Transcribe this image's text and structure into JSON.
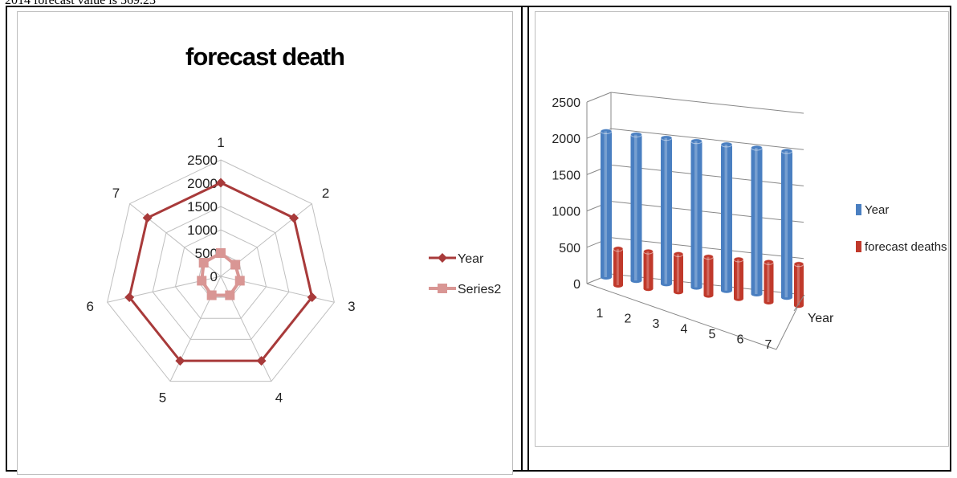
{
  "header_note": "2014 forecast value is 569.23",
  "colors": {
    "year_line": "#a83a3a",
    "series2_line": "#d99694",
    "year_bar": "#4a7fc1",
    "forecast_bar": "#c0392b",
    "grid": "#bfbfbf"
  },
  "chart_data": [
    {
      "type": "radar",
      "title": "forecast death",
      "categories": [
        "1",
        "2",
        "3",
        "4",
        "5",
        "6",
        "7"
      ],
      "radial_ticks": [
        "0",
        "500",
        "1000",
        "1500",
        "2000",
        "2500"
      ],
      "rlim": [
        0,
        2500
      ],
      "legend_position": "right",
      "series": [
        {
          "name": "Year",
          "values": [
            2008,
            2009,
            2010,
            2011,
            2012,
            2013,
            2014
          ],
          "marker": "diamond"
        },
        {
          "name": "Series2",
          "values": [
            500,
            400,
            420,
            450,
            450,
            420,
            470
          ],
          "marker": "square"
        }
      ]
    },
    {
      "type": "bar",
      "subtype": "3d-cylinder",
      "categories": [
        "1",
        "2",
        "3",
        "4",
        "5",
        "6",
        "7"
      ],
      "y_ticks": [
        "0",
        "500",
        "1000",
        "1500",
        "2000",
        "2500"
      ],
      "ylim": [
        0,
        2500
      ],
      "depth_label": "Year",
      "legend_position": "right",
      "grid": true,
      "series": [
        {
          "name": "Year",
          "values": [
            2008,
            2009,
            2010,
            2011,
            2012,
            2013,
            2014
          ]
        },
        {
          "name": "forecast deaths",
          "values": [
            500,
            510,
            520,
            530,
            540,
            550,
            569
          ]
        }
      ]
    }
  ]
}
